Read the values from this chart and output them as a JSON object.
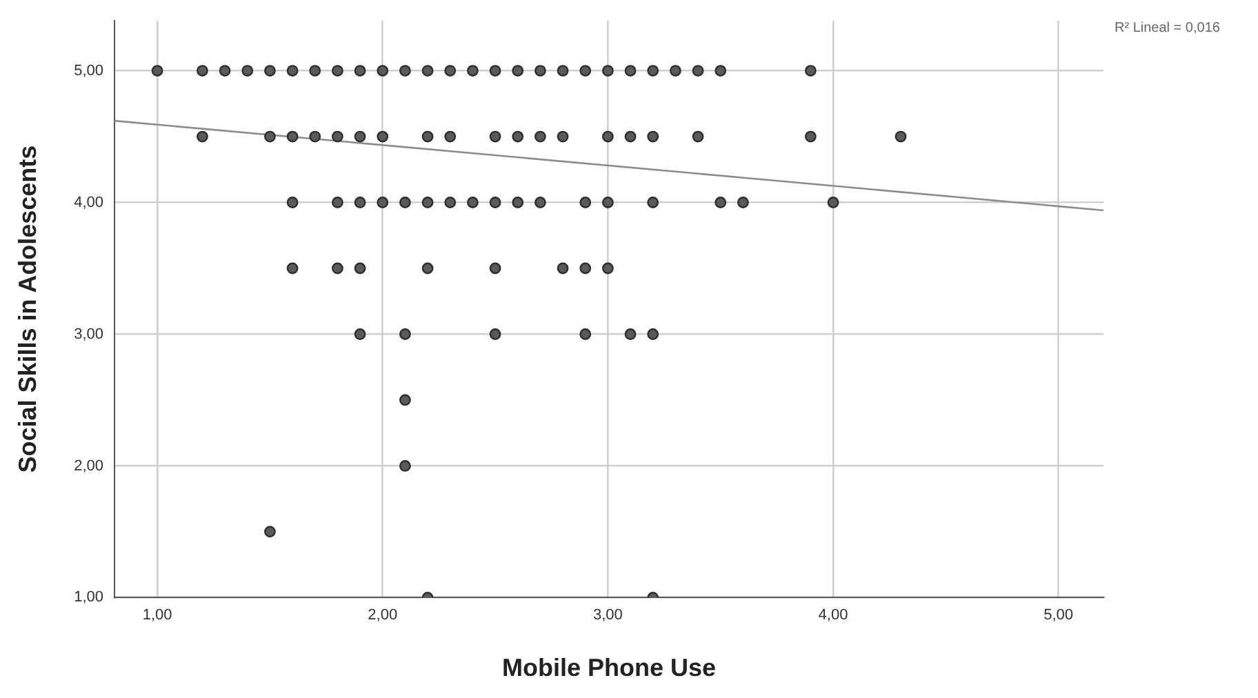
{
  "chart_data": {
    "type": "scatter",
    "xlabel": "Mobile Phone Use",
    "ylabel": "Social Skills in Adolescents",
    "xlim": [
      0.81,
      5.2
    ],
    "ylim": [
      1,
      5.38
    ],
    "xticks": [
      {
        "value": 1,
        "label": "1,00"
      },
      {
        "value": 2,
        "label": "2,00"
      },
      {
        "value": 3,
        "label": "3,00"
      },
      {
        "value": 4,
        "label": "4,00"
      },
      {
        "value": 5,
        "label": "5,00"
      }
    ],
    "yticks": [
      {
        "value": 1,
        "label": "1,00"
      },
      {
        "value": 2,
        "label": "2,00"
      },
      {
        "value": 3,
        "label": "3,00"
      },
      {
        "value": 4,
        "label": "4,00"
      },
      {
        "value": 5,
        "label": "5,00"
      }
    ],
    "grid": true,
    "legend": false,
    "annotations": [
      "R² Lineal = 0,016"
    ],
    "series": [
      {
        "marker": "circle",
        "color": "#5a5a5a",
        "x": [
          1.0,
          1.2,
          1.3,
          1.4,
          1.5,
          1.6,
          1.7,
          1.8,
          1.9,
          2.0,
          2.1,
          2.2,
          2.3,
          2.4,
          2.5,
          2.6,
          2.7,
          2.8,
          2.9,
          3.0,
          3.1,
          3.2,
          3.3,
          3.4,
          3.5,
          3.9,
          1.2,
          1.5,
          1.6,
          1.7,
          1.8,
          1.9,
          2.0,
          2.2,
          2.3,
          2.5,
          2.6,
          2.7,
          2.8,
          3.0,
          3.1,
          3.2,
          3.4,
          3.9,
          4.3,
          1.6,
          1.8,
          1.9,
          2.0,
          2.1,
          2.2,
          2.3,
          2.4,
          2.5,
          2.6,
          2.7,
          2.9,
          3.0,
          3.2,
          3.5,
          3.6,
          4.0,
          1.6,
          1.8,
          1.9,
          2.2,
          2.5,
          2.8,
          2.9,
          3.0,
          1.9,
          2.1,
          2.5,
          2.9,
          3.1,
          3.2,
          2.1,
          2.1,
          1.5,
          2.2,
          3.2
        ],
        "values": [
          5,
          5,
          5,
          5,
          5,
          5,
          5,
          5,
          5,
          5,
          5,
          5,
          5,
          5,
          5,
          5,
          5,
          5,
          5,
          5,
          5,
          5,
          5,
          5,
          5,
          5,
          4.5,
          4.5,
          4.5,
          4.5,
          4.5,
          4.5,
          4.5,
          4.5,
          4.5,
          4.5,
          4.5,
          4.5,
          4.5,
          4.5,
          4.5,
          4.5,
          4.5,
          4.5,
          4.5,
          4,
          4,
          4,
          4,
          4,
          4,
          4,
          4,
          4,
          4,
          4,
          4,
          4,
          4,
          4,
          4,
          4,
          3.5,
          3.5,
          3.5,
          3.5,
          3.5,
          3.5,
          3.5,
          3.5,
          3,
          3,
          3,
          3,
          3,
          3,
          2.5,
          2,
          1.5,
          1,
          1
        ]
      },
      {
        "type": "line",
        "marker": "none",
        "color": "#8c8c8c",
        "x": [
          0.81,
          5.2
        ],
        "values": [
          4.62,
          3.94
        ]
      }
    ]
  }
}
